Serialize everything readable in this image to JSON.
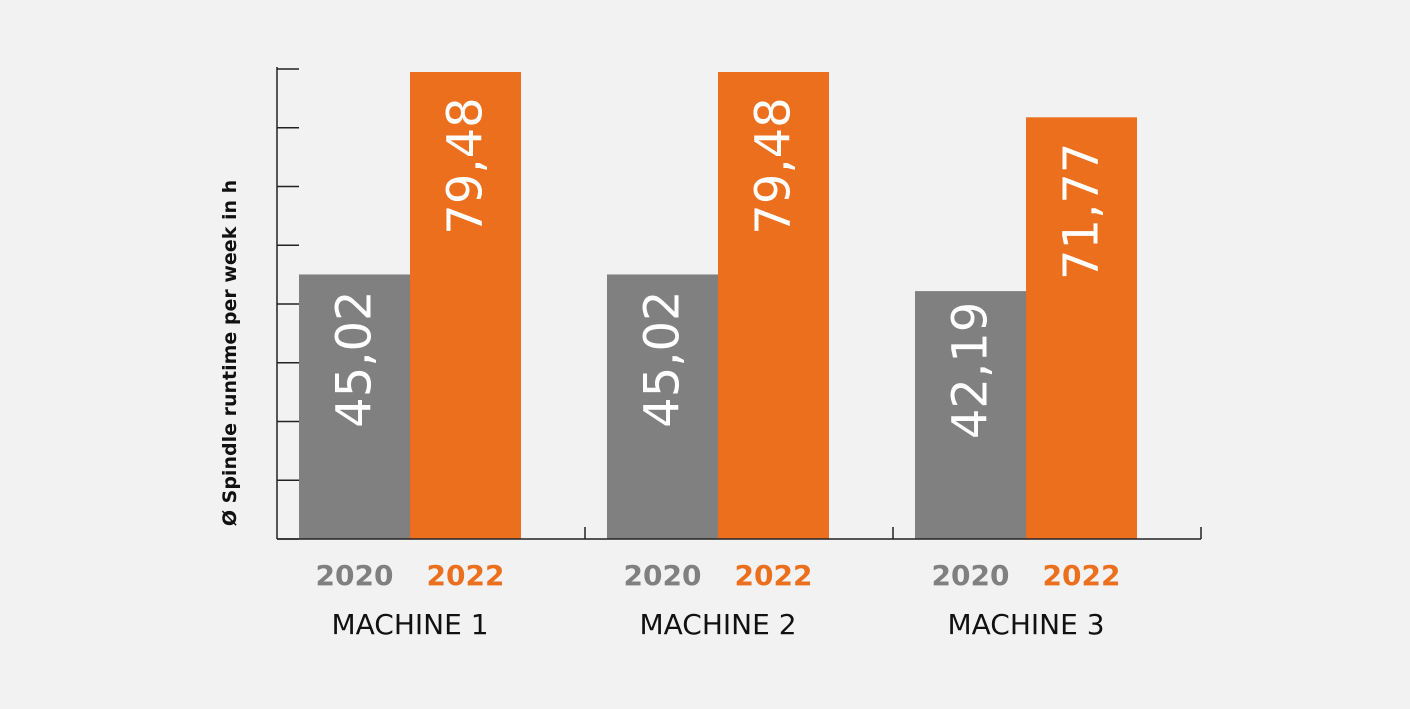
{
  "chart_data": {
    "type": "bar",
    "ylabel": "Ø Spindle runtime per week in h",
    "categories": [
      "MACHINE 1",
      "MACHINE 2",
      "MACHINE 3"
    ],
    "series": [
      {
        "name": "2020",
        "color": "#808080",
        "values": [
          45.02,
          45.02,
          42.19
        ],
        "value_labels": [
          "45,02",
          "45,02",
          "42,19"
        ]
      },
      {
        "name": "2022",
        "color": "#ec6f1e",
        "values": [
          79.48,
          79.48,
          71.77
        ],
        "value_labels": [
          "79,48",
          "79,48",
          "71,77"
        ]
      }
    ],
    "ylim": [
      0,
      80
    ],
    "y_ticks": [
      0,
      10,
      20,
      30,
      40,
      50,
      60,
      70,
      80
    ],
    "y_tick_labels_shown": false,
    "grid": false,
    "legend": "none"
  }
}
